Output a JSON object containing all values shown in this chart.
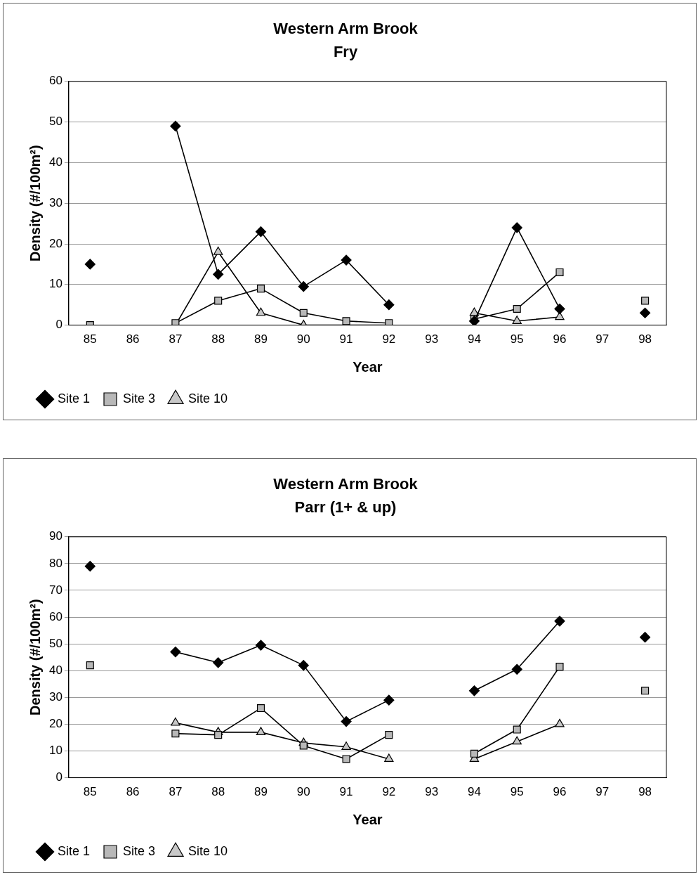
{
  "chart_data": [
    {
      "type": "line",
      "title": "Western Arm Brook",
      "subtitle": "Fry",
      "xlabel": "Year",
      "ylabel": "Density (#/100m²)",
      "categories": [
        "85",
        "86",
        "87",
        "88",
        "89",
        "90",
        "91",
        "92",
        "93",
        "94",
        "95",
        "96",
        "97",
        "98"
      ],
      "series": [
        {
          "name": "Site 1",
          "color": "#000000",
          "marker": "diamond",
          "values": [
            15,
            null,
            49,
            12.5,
            23,
            9.5,
            16,
            5,
            null,
            1,
            24,
            4,
            null,
            3
          ]
        },
        {
          "name": "Site 3",
          "color": "#000000",
          "marker": "square",
          "values": [
            0,
            null,
            0.5,
            6,
            9,
            3,
            1,
            0.5,
            null,
            1.5,
            4,
            13,
            null,
            6
          ]
        },
        {
          "name": "Site 10",
          "color": "#000000",
          "marker": "triangle",
          "values": [
            null,
            null,
            0,
            18,
            3,
            0,
            0,
            0,
            null,
            3,
            1,
            2,
            null,
            null
          ]
        }
      ],
      "ylim": [
        0,
        60
      ],
      "yticks": [
        0,
        10,
        20,
        30,
        40,
        50,
        60
      ],
      "grid": "y",
      "legend": "bottom"
    },
    {
      "type": "line",
      "title": "Western Arm Brook",
      "subtitle": "Parr (1+ & up)",
      "xlabel": "Year",
      "ylabel": "Density (#/100m²)",
      "categories": [
        "85",
        "86",
        "87",
        "88",
        "89",
        "90",
        "91",
        "92",
        "93",
        "94",
        "95",
        "96",
        "97",
        "98"
      ],
      "series": [
        {
          "name": "Site 1",
          "color": "#000000",
          "marker": "diamond",
          "values": [
            79,
            null,
            47,
            43,
            49.5,
            42,
            21,
            29,
            null,
            32.5,
            40.5,
            58.5,
            null,
            52.5
          ]
        },
        {
          "name": "Site 3",
          "color": "#000000",
          "marker": "square",
          "values": [
            42,
            null,
            16.5,
            16,
            26,
            12,
            7,
            16,
            null,
            9,
            18,
            41.5,
            null,
            32.5
          ]
        },
        {
          "name": "Site 10",
          "color": "#000000",
          "marker": "triangle",
          "values": [
            null,
            null,
            20.5,
            17,
            17,
            13,
            11.5,
            7,
            null,
            7,
            13.5,
            20,
            null,
            null
          ]
        }
      ],
      "ylim": [
        0,
        90
      ],
      "yticks": [
        0,
        10,
        20,
        30,
        40,
        50,
        60,
        70,
        80,
        90
      ],
      "grid": "y",
      "legend": "bottom"
    }
  ]
}
